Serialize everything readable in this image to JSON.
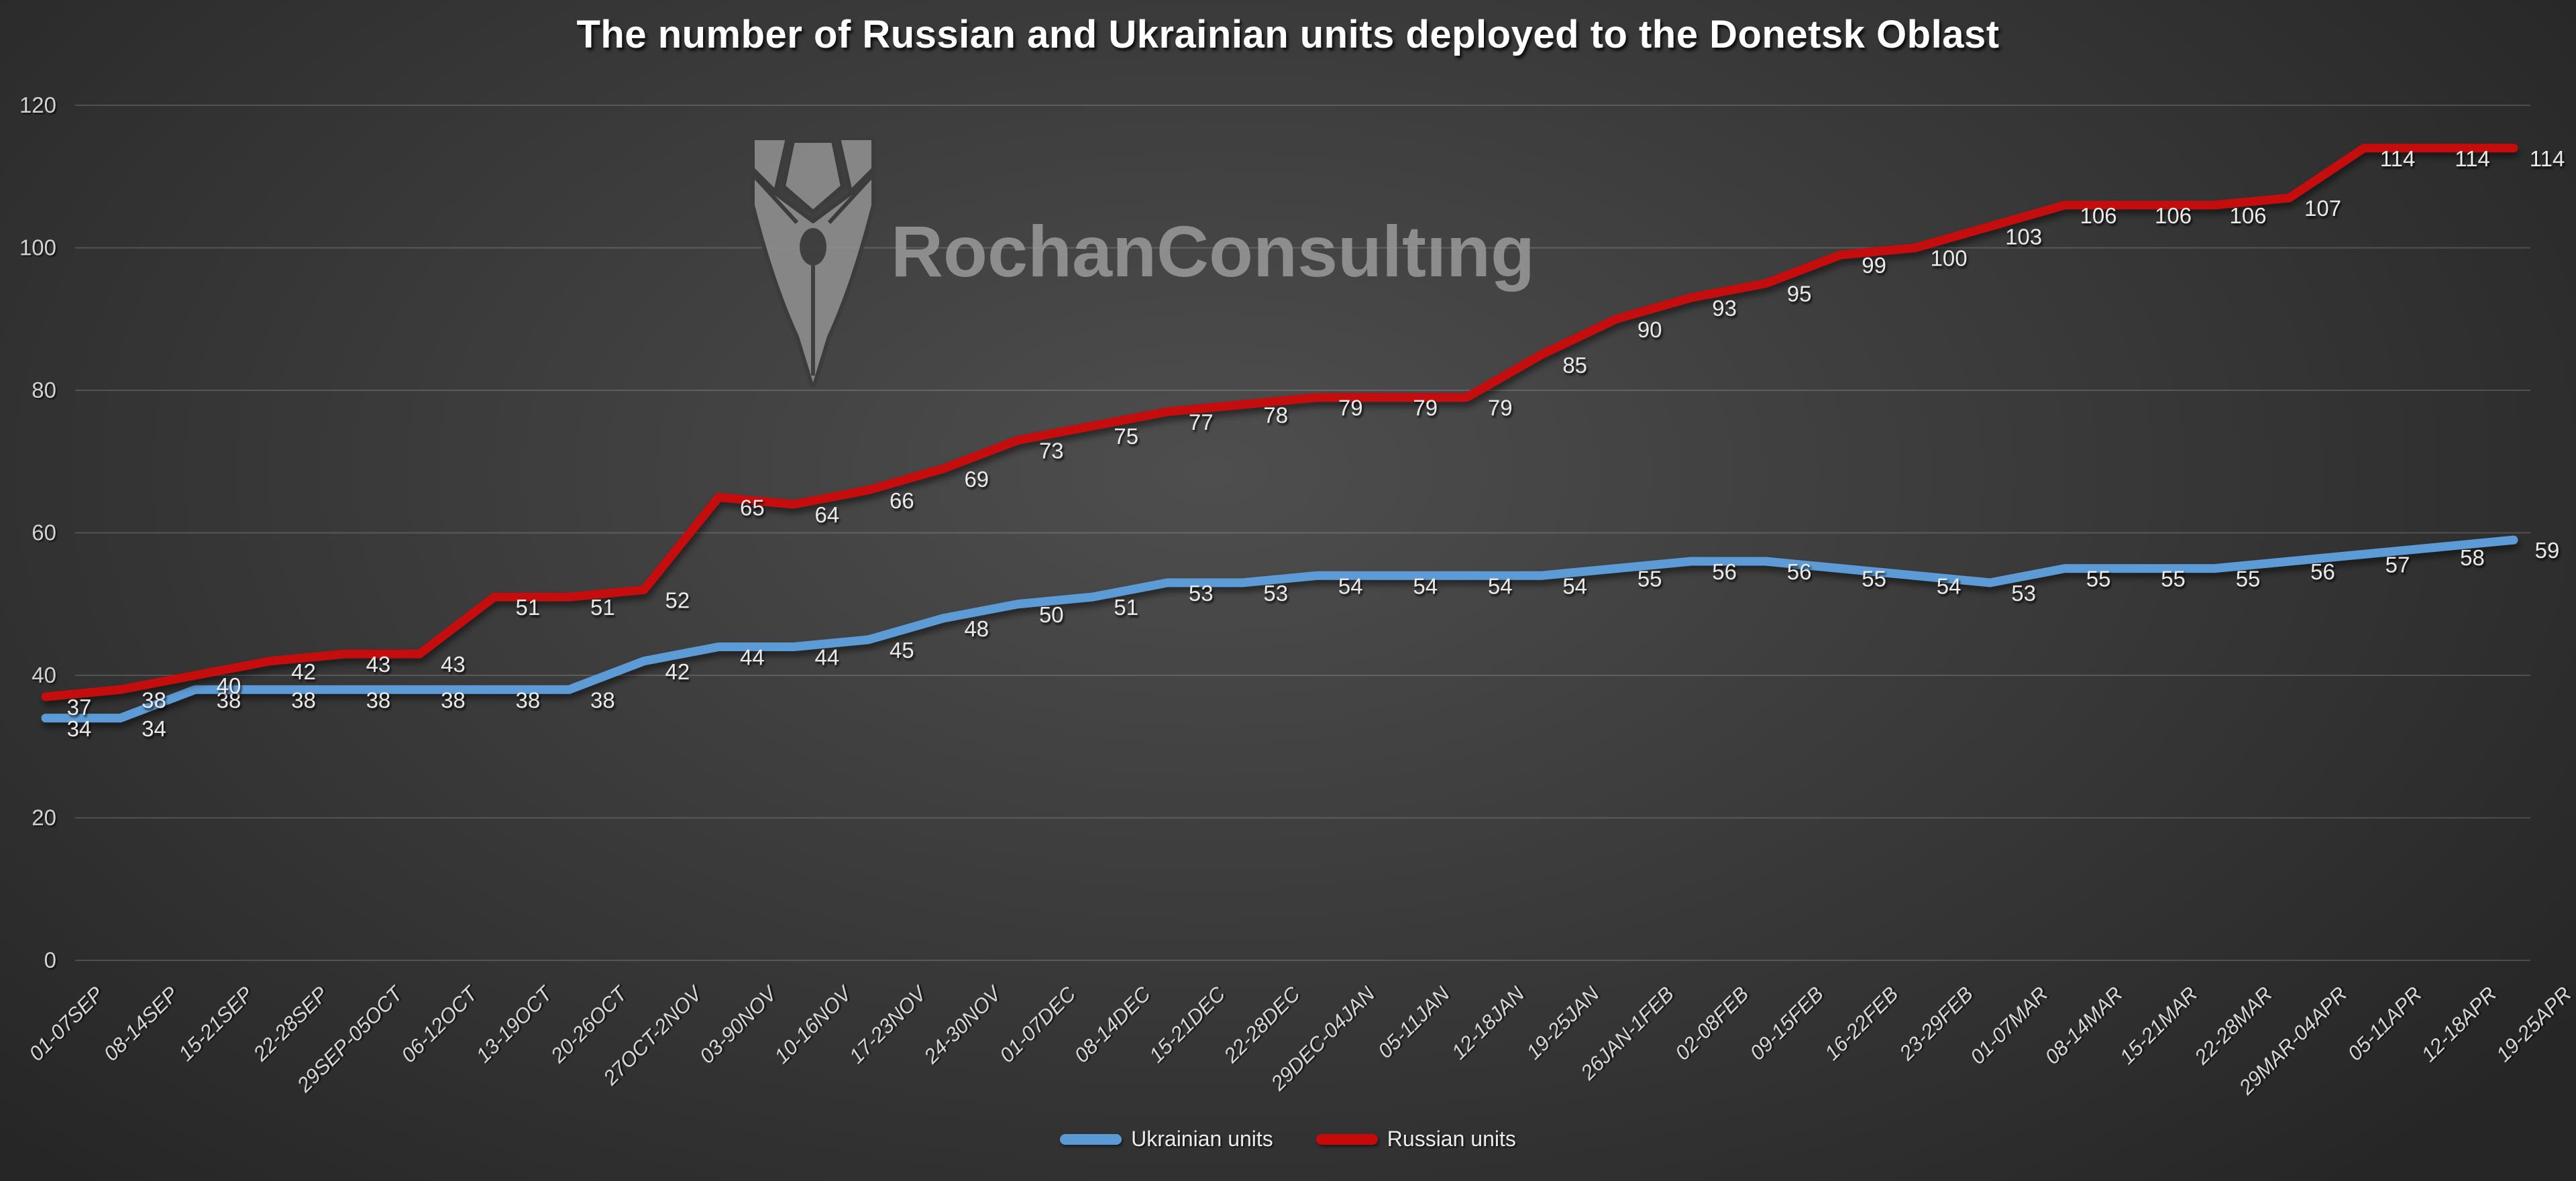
{
  "title": "The number of Russian and Ukrainian units deployed to the Donetsk Oblast",
  "watermark": {
    "text": "RochanConsultıng",
    "icon": "pen-nib-logo"
  },
  "legend": [
    {
      "label": "Ukrainian units",
      "color": "#5B9BD5"
    },
    {
      "label": "Russian units",
      "color": "#C60909"
    }
  ],
  "colors": {
    "background_center": "#4e4e4e",
    "background_edge": "#262626",
    "gridline": "rgba(255,255,255,0.16)",
    "axis_text": "#d2d2d2",
    "data_label_text": "#e9e9e9",
    "title_text": "#ffffff",
    "watermark_gray": "#989898",
    "ukrainian_blue": "#5B9BD5",
    "russian_red": "#C60909"
  },
  "chart_data": {
    "type": "line",
    "title": "The number of Russian and Ukrainian units deployed to the Donetsk Oblast",
    "categories": [
      "01-07SEP",
      "08-14SEP",
      "15-21SEP",
      "22-28SEP",
      "29SEP-05OCT",
      "06-12OCT",
      "13-19OCT",
      "20-26OCT",
      "27OCT-2NOV",
      "03-90NOV",
      "10-16NOV",
      "17-23NOV",
      "24-30NOV",
      "01-07DEC",
      "08-14DEC",
      "15-21DEC",
      "22-28DEC",
      "29DEC-04JAN",
      "05-11JAN",
      "12-18JAN",
      "19-25JAN",
      "26JAN-1FEB",
      "02-08FEB",
      "09-15FEB",
      "16-22FEB",
      "23-29FEB",
      "01-07MAR",
      "08-14MAR",
      "15-21MAR",
      "22-28MAR",
      "29MAR-04APR",
      "05-11APR",
      "12-18APR",
      "19-25APR"
    ],
    "series": [
      {
        "name": "Ukrainian units",
        "color": "#5B9BD5",
        "values": [
          34,
          34,
          38,
          38,
          38,
          38,
          38,
          38,
          42,
          44,
          44,
          45,
          48,
          50,
          51,
          53,
          53,
          54,
          54,
          54,
          54,
          55,
          56,
          56,
          55,
          54,
          53,
          55,
          55,
          55,
          56,
          57,
          58,
          59
        ]
      },
      {
        "name": "Russian units",
        "color": "#C60909",
        "values": [
          37,
          38,
          40,
          42,
          43,
          43,
          51,
          51,
          52,
          65,
          64,
          66,
          69,
          73,
          75,
          77,
          78,
          79,
          79,
          79,
          85,
          90,
          93,
          95,
          99,
          100,
          103,
          106,
          106,
          106,
          107,
          114,
          114,
          114
        ]
      }
    ],
    "xlabel": "",
    "ylabel": "",
    "ylim": [
      0,
      120
    ],
    "yticks": [
      0,
      20,
      40,
      60,
      80,
      100,
      120
    ],
    "grid": true,
    "legend_position": "bottom",
    "data_labels": true,
    "x_tick_rotation": -45
  }
}
